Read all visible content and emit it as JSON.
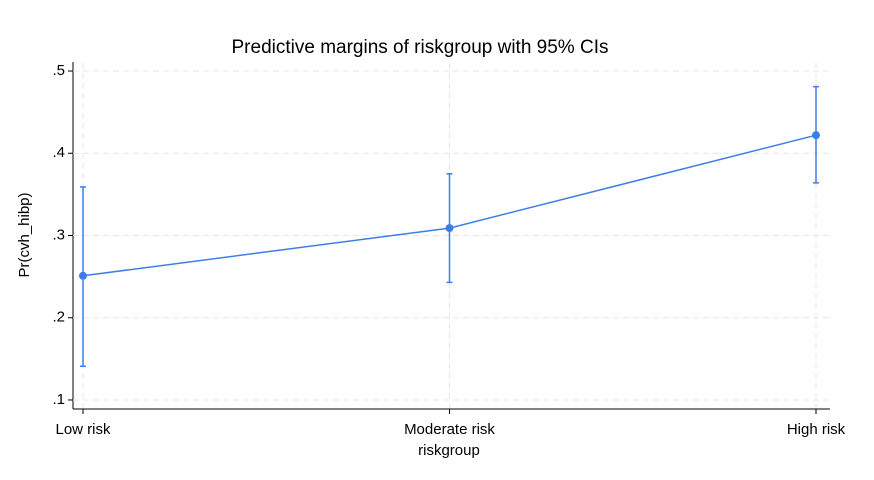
{
  "chart_data": {
    "type": "line",
    "title": "Predictive margins of riskgroup with 95% CIs",
    "x_label": "riskgroup",
    "y_label": "Pr(cvh_hibp)",
    "categories": [
      "Low risk",
      "Moderate risk",
      "High risk"
    ],
    "series": [
      {
        "name": "Pr(cvh_hibp)",
        "color": "#3d7ee6",
        "values": [
          0.251,
          0.309,
          0.422
        ],
        "ci_low": [
          0.141,
          0.243,
          0.364
        ],
        "ci_high": [
          0.359,
          0.375,
          0.481
        ]
      }
    ],
    "ylim": [
      0.09,
      0.51
    ],
    "yticks": [
      {
        "value": 0.1,
        "label": ".1"
      },
      {
        "value": 0.2,
        "label": ".2"
      },
      {
        "value": 0.3,
        "label": ".3"
      },
      {
        "value": 0.4,
        "label": ".4"
      },
      {
        "value": 0.5,
        "label": ".5"
      }
    ],
    "grid": true
  }
}
